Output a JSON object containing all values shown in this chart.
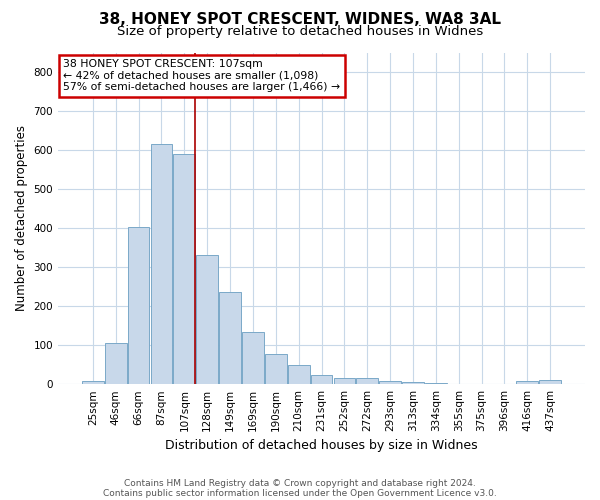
{
  "title1": "38, HONEY SPOT CRESCENT, WIDNES, WA8 3AL",
  "title2": "Size of property relative to detached houses in Widnes",
  "xlabel": "Distribution of detached houses by size in Widnes",
  "ylabel": "Number of detached properties",
  "categories": [
    "25sqm",
    "46sqm",
    "66sqm",
    "87sqm",
    "107sqm",
    "128sqm",
    "149sqm",
    "169sqm",
    "190sqm",
    "210sqm",
    "231sqm",
    "252sqm",
    "272sqm",
    "293sqm",
    "313sqm",
    "334sqm",
    "355sqm",
    "375sqm",
    "396sqm",
    "416sqm",
    "437sqm"
  ],
  "values": [
    8,
    106,
    402,
    615,
    590,
    330,
    237,
    135,
    78,
    50,
    23,
    15,
    17,
    8,
    5,
    2,
    0,
    0,
    0,
    8,
    10
  ],
  "bar_color": "#c8d8ea",
  "bar_edge_color": "#7aa8c8",
  "red_line_index": 4,
  "ylim": [
    0,
    850
  ],
  "yticks": [
    0,
    100,
    200,
    300,
    400,
    500,
    600,
    700,
    800
  ],
  "annotation_text": "38 HONEY SPOT CRESCENT: 107sqm\n← 42% of detached houses are smaller (1,098)\n57% of semi-detached houses are larger (1,466) →",
  "annotation_box_color": "#ffffff",
  "annotation_box_edge_color": "#cc0000",
  "footer1": "Contains HM Land Registry data © Crown copyright and database right 2024.",
  "footer2": "Contains public sector information licensed under the Open Government Licence v3.0.",
  "bg_color": "#ffffff",
  "grid_color": "#c8d8e8",
  "title1_fontsize": 11,
  "title2_fontsize": 9.5,
  "xlabel_fontsize": 9,
  "ylabel_fontsize": 8.5,
  "tick_fontsize": 7.5,
  "footer_fontsize": 6.5
}
